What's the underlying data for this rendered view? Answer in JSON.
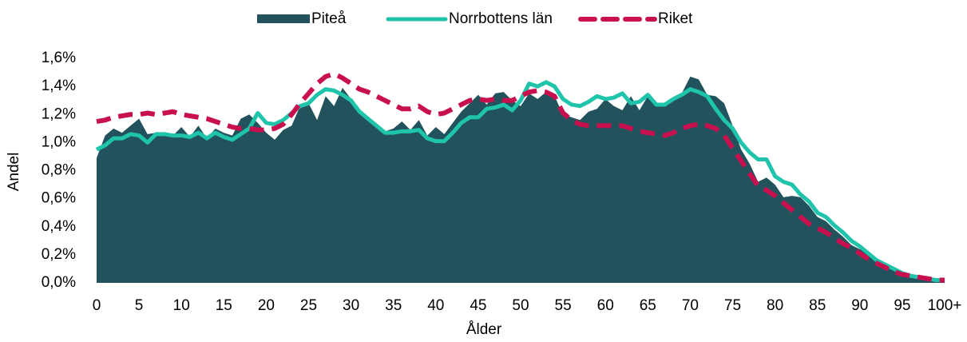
{
  "chart_data": {
    "type": "area-line",
    "x_label": "Ålder",
    "y_label": "Andel",
    "categories": [
      "0",
      null,
      null,
      null,
      null,
      "5",
      null,
      null,
      null,
      null,
      "10",
      null,
      null,
      null,
      null,
      "15",
      null,
      null,
      null,
      null,
      "20",
      null,
      null,
      null,
      null,
      "25",
      null,
      null,
      null,
      null,
      "30",
      null,
      null,
      null,
      null,
      "35",
      null,
      null,
      null,
      null,
      "40",
      null,
      null,
      null,
      null,
      "45",
      null,
      null,
      null,
      null,
      "50",
      null,
      null,
      null,
      null,
      "55",
      null,
      null,
      null,
      null,
      "60",
      null,
      null,
      null,
      null,
      "65",
      null,
      null,
      null,
      null,
      "70",
      null,
      null,
      null,
      null,
      "75",
      null,
      null,
      null,
      null,
      "80",
      null,
      null,
      null,
      null,
      "85",
      null,
      null,
      null,
      null,
      "90",
      null,
      null,
      null,
      null,
      "95",
      null,
      null,
      null,
      null,
      "100+"
    ],
    "ylim": [
      0,
      1.6
    ],
    "yticks": [
      {
        "value": 0,
        "label": "0,0%"
      },
      {
        "value": 0.2,
        "label": "0,2%"
      },
      {
        "value": 0.4,
        "label": "0,4%"
      },
      {
        "value": 0.6,
        "label": "0,6%"
      },
      {
        "value": 0.8,
        "label": "0,8%"
      },
      {
        "value": 1.0,
        "label": "1,0%"
      },
      {
        "value": 1.2,
        "label": "1,2%"
      },
      {
        "value": 1.4,
        "label": "1,4%"
      },
      {
        "value": 1.6,
        "label": "1,6%"
      }
    ],
    "grid": false,
    "legend": "top",
    "series": [
      {
        "name": "Piteå",
        "style": "area",
        "color": "#22535d",
        "values": [
          0.89,
          1.05,
          1.1,
          1.07,
          1.12,
          1.17,
          1.06,
          1.07,
          1.05,
          1.05,
          1.11,
          1.04,
          1.12,
          1.03,
          1.1,
          1.07,
          1.05,
          1.17,
          1.2,
          1.14,
          1.07,
          1.02,
          1.09,
          1.12,
          1.26,
          1.28,
          1.16,
          1.33,
          1.26,
          1.39,
          1.31,
          1.22,
          1.17,
          1.11,
          1.08,
          1.1,
          1.15,
          1.09,
          1.16,
          1.05,
          1.11,
          1.06,
          1.14,
          1.22,
          1.28,
          1.34,
          1.27,
          1.35,
          1.36,
          1.3,
          1.26,
          1.35,
          1.31,
          1.36,
          1.33,
          1.2,
          1.18,
          1.16,
          1.22,
          1.24,
          1.31,
          1.26,
          1.23,
          1.33,
          1.23,
          1.33,
          1.28,
          1.28,
          1.32,
          1.35,
          1.47,
          1.45,
          1.34,
          1.33,
          1.28,
          1.12,
          0.95,
          0.85,
          0.72,
          0.75,
          0.7,
          0.61,
          0.62,
          0.61,
          0.55,
          0.47,
          0.44,
          0.38,
          0.33,
          0.27,
          0.24,
          0.21,
          0.16,
          0.12,
          0.1,
          0.07,
          0.05,
          0.04,
          0.03,
          0.02,
          0.02
        ]
      },
      {
        "name": "Norrbottens län",
        "style": "line",
        "color": "#1fc4aa",
        "values": [
          0.95,
          0.98,
          1.03,
          1.03,
          1.06,
          1.05,
          1.0,
          1.06,
          1.06,
          1.05,
          1.05,
          1.04,
          1.07,
          1.03,
          1.07,
          1.04,
          1.02,
          1.06,
          1.1,
          1.21,
          1.14,
          1.13,
          1.16,
          1.21,
          1.26,
          1.28,
          1.34,
          1.38,
          1.37,
          1.34,
          1.3,
          1.22,
          1.17,
          1.12,
          1.07,
          1.07,
          1.08,
          1.08,
          1.09,
          1.03,
          1.01,
          1.01,
          1.07,
          1.14,
          1.18,
          1.18,
          1.24,
          1.25,
          1.27,
          1.23,
          1.3,
          1.42,
          1.4,
          1.43,
          1.4,
          1.31,
          1.27,
          1.26,
          1.29,
          1.33,
          1.31,
          1.32,
          1.35,
          1.28,
          1.29,
          1.34,
          1.27,
          1.27,
          1.31,
          1.34,
          1.38,
          1.36,
          1.33,
          1.24,
          1.16,
          1.1,
          1.0,
          0.93,
          0.88,
          0.88,
          0.76,
          0.72,
          0.7,
          0.63,
          0.58,
          0.5,
          0.47,
          0.41,
          0.36,
          0.3,
          0.26,
          0.21,
          0.16,
          0.13,
          0.1,
          0.07,
          0.05,
          0.04,
          0.03,
          0.02,
          0.02
        ]
      },
      {
        "name": "Riket",
        "style": "dashed",
        "color": "#c8104f",
        "values": [
          1.15,
          1.16,
          1.18,
          1.19,
          1.2,
          1.2,
          1.21,
          1.2,
          1.21,
          1.22,
          1.2,
          1.19,
          1.18,
          1.17,
          1.15,
          1.13,
          1.11,
          1.1,
          1.1,
          1.09,
          1.09,
          1.1,
          1.13,
          1.2,
          1.28,
          1.35,
          1.42,
          1.47,
          1.49,
          1.46,
          1.42,
          1.38,
          1.36,
          1.33,
          1.3,
          1.27,
          1.24,
          1.24,
          1.26,
          1.22,
          1.2,
          1.21,
          1.24,
          1.27,
          1.3,
          1.31,
          1.3,
          1.31,
          1.3,
          1.3,
          1.33,
          1.36,
          1.37,
          1.36,
          1.33,
          1.21,
          1.16,
          1.13,
          1.12,
          1.12,
          1.12,
          1.12,
          1.12,
          1.1,
          1.08,
          1.07,
          1.06,
          1.05,
          1.07,
          1.1,
          1.12,
          1.13,
          1.12,
          1.1,
          1.05,
          0.96,
          0.87,
          0.78,
          0.69,
          0.66,
          0.62,
          0.57,
          0.52,
          0.47,
          0.42,
          0.39,
          0.36,
          0.32,
          0.28,
          0.25,
          0.21,
          0.17,
          0.14,
          0.11,
          0.08,
          0.06,
          0.05,
          0.04,
          0.03,
          0.02,
          0.02
        ]
      }
    ]
  }
}
